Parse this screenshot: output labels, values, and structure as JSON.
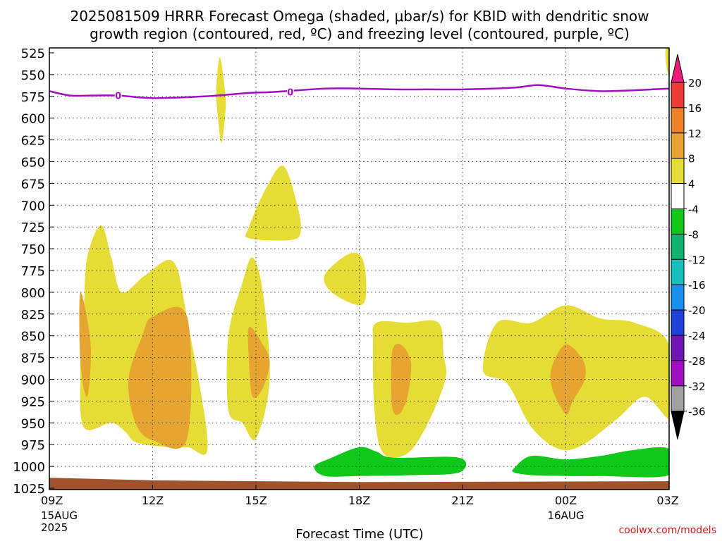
{
  "chart_data": {
    "type": "heatmap",
    "title_line1": "2025081509 HRRR Forecast Omega (shaded, μbar/s) for KBID with dendritic snow",
    "title_line2": "growth region (contoured, red, ºC) and freezing level (contoured, purple, ºC)",
    "xlabel": "Forecast Time (UTC)",
    "credit": "coolwx.com/models",
    "x_range_hours": [
      0,
      18
    ],
    "x_ticks": [
      {
        "hour": 0,
        "label": "09Z",
        "sub1": "15AUG",
        "sub2": "2025"
      },
      {
        "hour": 3,
        "label": "12Z",
        "sub1": "",
        "sub2": ""
      },
      {
        "hour": 6,
        "label": "15Z",
        "sub1": "",
        "sub2": ""
      },
      {
        "hour": 9,
        "label": "18Z",
        "sub1": "",
        "sub2": ""
      },
      {
        "hour": 12,
        "label": "21Z",
        "sub1": "",
        "sub2": ""
      },
      {
        "hour": 15,
        "label": "00Z",
        "sub1": "16AUG",
        "sub2": ""
      },
      {
        "hour": 18,
        "label": "03Z",
        "sub1": "",
        "sub2": ""
      }
    ],
    "y_range_hpa": [
      1025,
      525
    ],
    "y_ticks": [
      525,
      550,
      575,
      600,
      625,
      650,
      675,
      700,
      725,
      750,
      775,
      800,
      825,
      850,
      875,
      900,
      925,
      950,
      975,
      1000,
      1025
    ],
    "grid": true,
    "colorbar": {
      "labels": [
        "20",
        "16",
        "12",
        "8",
        "4",
        "-4",
        "-8",
        "-12",
        "-16",
        "-20",
        "-24",
        "-28",
        "-32",
        "-36"
      ],
      "colors": [
        "#ec1b78",
        "#f03a36",
        "#ee8226",
        "#e6a530",
        "#e6dc36",
        "#ffffff",
        "#10c81a",
        "#10b46e",
        "#18c0bc",
        "#1890ee",
        "#2040dc",
        "#7014b4",
        "#a010c0",
        "#a0a0a0",
        "#000000"
      ]
    },
    "omega_regions": [
      {
        "level": "4-8",
        "color": "#e6dc36",
        "points": [
          [
            1.0,
            955
          ],
          [
            0.9,
            890
          ],
          [
            1.0,
            820
          ],
          [
            1.1,
            760
          ],
          [
            1.5,
            723
          ],
          [
            1.8,
            760
          ],
          [
            2.1,
            800
          ],
          [
            2.8,
            780
          ],
          [
            3.6,
            765
          ],
          [
            4.0,
            830
          ],
          [
            4.6,
            975
          ],
          [
            4.0,
            978
          ],
          [
            3.2,
            977
          ],
          [
            2.5,
            972
          ],
          [
            2.2,
            960
          ],
          [
            1.8,
            950
          ]
        ]
      },
      {
        "level": "4-8",
        "color": "#e6dc36",
        "points": [
          [
            5.2,
            935
          ],
          [
            5.2,
            850
          ],
          [
            5.6,
            790
          ],
          [
            5.9,
            760
          ],
          [
            6.2,
            800
          ],
          [
            6.4,
            900
          ],
          [
            6.0,
            968
          ],
          [
            5.6,
            950
          ]
        ]
      },
      {
        "level": "4-8",
        "color": "#e6dc36",
        "points": [
          [
            5.8,
            738
          ],
          [
            5.8,
            725
          ],
          [
            6.3,
            680
          ],
          [
            6.8,
            655
          ],
          [
            7.2,
            700
          ],
          [
            7.3,
            730
          ],
          [
            7.0,
            740
          ]
        ]
      },
      {
        "level": "4-8",
        "color": "#e6dc36",
        "points": [
          [
            8.0,
            780
          ],
          [
            8.7,
            756
          ],
          [
            9.1,
            762
          ],
          [
            9.2,
            800
          ],
          [
            9.0,
            815
          ],
          [
            8.2,
            800
          ]
        ]
      },
      {
        "level": "4-8",
        "color": "#e6dc36",
        "points": [
          [
            4.85,
            568
          ],
          [
            4.95,
            530
          ],
          [
            5.1,
            568
          ],
          [
            5.12,
            590
          ],
          [
            5.0,
            628
          ],
          [
            4.9,
            600
          ]
        ]
      },
      {
        "level": "4-8",
        "color": "#e6dc36",
        "points": [
          [
            9.5,
            835
          ],
          [
            10.4,
            835
          ],
          [
            11.3,
            835
          ],
          [
            11.45,
            872
          ],
          [
            11.5,
            900
          ],
          [
            11.0,
            950
          ],
          [
            10.4,
            985
          ],
          [
            9.7,
            985
          ],
          [
            9.45,
            940
          ],
          [
            9.4,
            860
          ]
        ]
      },
      {
        "level": "4-8",
        "color": "#e6dc36",
        "points": [
          [
            12.6,
            890
          ],
          [
            13.0,
            835
          ],
          [
            14.0,
            835
          ],
          [
            15.0,
            815
          ],
          [
            16.0,
            830
          ],
          [
            17.0,
            835
          ],
          [
            18.0,
            860
          ],
          [
            18.1,
            945
          ],
          [
            17.3,
            920
          ],
          [
            16.5,
            945
          ],
          [
            15.5,
            975
          ],
          [
            14.8,
            980
          ],
          [
            14.0,
            955
          ],
          [
            13.3,
            905
          ]
        ]
      },
      {
        "level": "4-8",
        "color": "#e6dc36",
        "points": [
          [
            17.9,
            520
          ],
          [
            18.05,
            515
          ],
          [
            18.05,
            555
          ],
          [
            17.92,
            540
          ]
        ]
      },
      {
        "level": "8-12",
        "color": "#e6a530",
        "points": [
          [
            0.9,
            800
          ],
          [
            1.2,
            860
          ],
          [
            1.1,
            920
          ],
          [
            0.9,
            880
          ]
        ]
      },
      {
        "level": "8-12",
        "color": "#e6a530",
        "points": [
          [
            2.3,
            900
          ],
          [
            2.7,
            850
          ],
          [
            3.0,
            828
          ],
          [
            4.0,
            828
          ],
          [
            4.0,
            968
          ],
          [
            3.0,
            970
          ],
          [
            2.5,
            950
          ]
        ]
      },
      {
        "level": "8-12",
        "color": "#e6a530",
        "points": [
          [
            5.8,
            840
          ],
          [
            6.2,
            860
          ],
          [
            6.4,
            880
          ],
          [
            6.2,
            910
          ],
          [
            5.9,
            920
          ],
          [
            5.8,
            880
          ]
        ]
      },
      {
        "level": "8-12",
        "color": "#e6a530",
        "points": [
          [
            9.95,
            870
          ],
          [
            10.2,
            860
          ],
          [
            10.5,
            880
          ],
          [
            10.4,
            920
          ],
          [
            10.15,
            940
          ],
          [
            9.95,
            930
          ]
        ]
      },
      {
        "level": "8-12",
        "color": "#e6a530",
        "points": [
          [
            14.6,
            885
          ],
          [
            15.0,
            860
          ],
          [
            15.5,
            878
          ],
          [
            15.55,
            900
          ],
          [
            15.2,
            925
          ],
          [
            15.0,
            940
          ],
          [
            14.6,
            910
          ]
        ]
      },
      {
        "level": "-4 to -8",
        "color": "#10c81a",
        "points": [
          [
            7.7,
            1000
          ],
          [
            8.2,
            990
          ],
          [
            9.0,
            978
          ],
          [
            9.5,
            983
          ],
          [
            10.0,
            990
          ],
          [
            11.9,
            990
          ],
          [
            11.9,
            1007
          ],
          [
            10.5,
            1010
          ],
          [
            9.0,
            1011
          ],
          [
            8.0,
            1011
          ]
        ]
      },
      {
        "level": "-4 to -8",
        "color": "#10c81a",
        "points": [
          [
            13.5,
            1002
          ],
          [
            14.0,
            988
          ],
          [
            15.0,
            992
          ],
          [
            16.0,
            988
          ],
          [
            17.0,
            981
          ],
          [
            18.0,
            980
          ],
          [
            18.0,
            1010
          ],
          [
            16.0,
            1011
          ],
          [
            15.0,
            1011
          ],
          [
            14.0,
            1010
          ],
          [
            13.5,
            1007
          ]
        ]
      }
    ],
    "freezing_level": {
      "label": "0",
      "color": "#a010c0",
      "points": [
        [
          0,
          569
        ],
        [
          0.6,
          574
        ],
        [
          1.2,
          574
        ],
        [
          2.0,
          574
        ],
        [
          3.0,
          577
        ],
        [
          4.5,
          575
        ],
        [
          5.8,
          571
        ],
        [
          6.5,
          570
        ],
        [
          8.0,
          566
        ],
        [
          9.0,
          566
        ],
        [
          10.0,
          567
        ],
        [
          11.0,
          567
        ],
        [
          12.0,
          567
        ],
        [
          13.5,
          565
        ],
        [
          14.2,
          562
        ],
        [
          15.0,
          566
        ],
        [
          16.0,
          569
        ],
        [
          17.0,
          568
        ],
        [
          18.0,
          566
        ]
      ],
      "label_hours": [
        2.0,
        7.0
      ]
    },
    "terrain": {
      "color": "#a0522d",
      "points": [
        [
          0,
          1013
        ],
        [
          3.0,
          1016
        ],
        [
          9.0,
          1018
        ],
        [
          18.0,
          1017
        ]
      ]
    }
  }
}
